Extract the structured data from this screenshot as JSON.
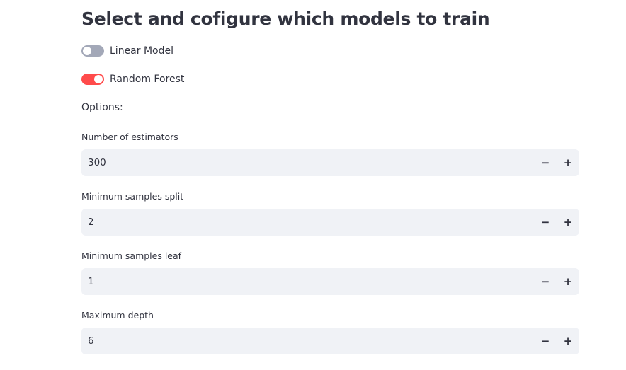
{
  "page": {
    "title": "Select and cofigure which models to train"
  },
  "toggles": [
    {
      "label": "Linear Model",
      "checked": false
    },
    {
      "label": "Random Forest",
      "checked": true
    }
  ],
  "options_label": "Options:",
  "fields": [
    {
      "label": "Number of estimators",
      "value": "300",
      "minus": "−",
      "plus": "+"
    },
    {
      "label": "Minimum samples split",
      "value": "2",
      "minus": "−",
      "plus": "+"
    },
    {
      "label": "Minimum samples leaf",
      "value": "1",
      "minus": "−",
      "plus": "+"
    },
    {
      "label": "Maximum depth",
      "value": "6",
      "minus": "−",
      "plus": "+"
    }
  ],
  "colors": {
    "accent": "#ff4b4b",
    "toggle_off": "#a3a8b8",
    "input_bg": "#f0f2f6",
    "text": "#31333f"
  }
}
